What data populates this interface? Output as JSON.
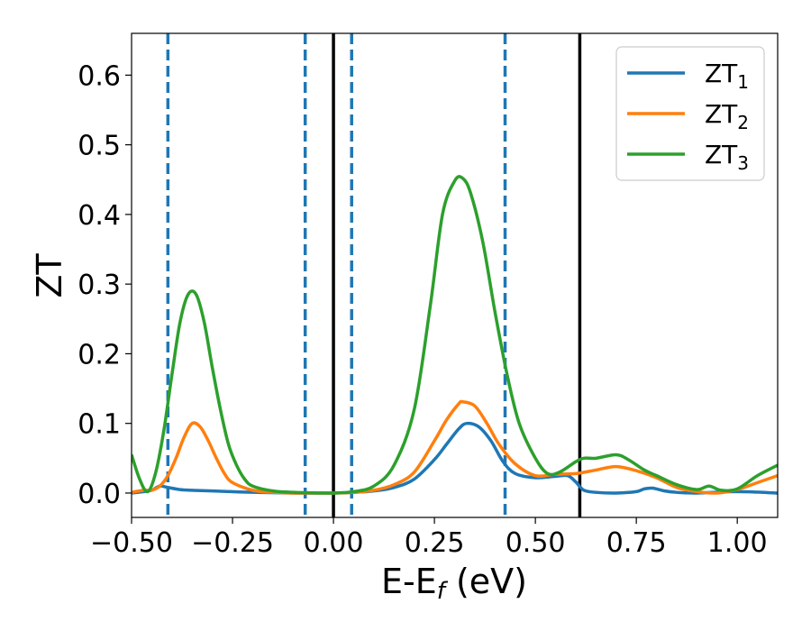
{
  "chart_data": {
    "type": "line",
    "xlabel_main": "E-E",
    "xlabel_sub": "f",
    "xlabel_unit": " (eV)",
    "ylabel": "ZT",
    "xlim": [
      -0.5,
      1.1
    ],
    "ylim": [
      -0.035,
      0.66
    ],
    "xticks": [
      -0.5,
      -0.25,
      0.0,
      0.25,
      0.5,
      0.75,
      1.0
    ],
    "xtick_labels": [
      "−0.50",
      "−0.25",
      "0.00",
      "0.25",
      "0.50",
      "0.75",
      "1.00"
    ],
    "yticks": [
      0.0,
      0.1,
      0.2,
      0.3,
      0.4,
      0.5,
      0.6
    ],
    "ytick_labels": [
      "0.0",
      "0.1",
      "0.2",
      "0.3",
      "0.4",
      "0.5",
      "0.6"
    ],
    "grid": false,
    "legend_position": "top-right",
    "vlines_solid": [
      0.0,
      0.61
    ],
    "vlines_dashed": [
      -0.41,
      -0.07,
      0.045,
      0.425
    ],
    "vline_solid_color": "#000000",
    "vline_dashed_color": "#1f77b4",
    "series": [
      {
        "name_main": "ZT",
        "name_sub": "1",
        "color": "#1f77b4",
        "x": [
          -0.5,
          -0.47,
          -0.45,
          -0.43,
          -0.41,
          -0.38,
          -0.35,
          -0.3,
          -0.2,
          -0.1,
          0.0,
          0.05,
          0.1,
          0.15,
          0.2,
          0.25,
          0.28,
          0.31,
          0.33,
          0.36,
          0.39,
          0.42,
          0.45,
          0.5,
          0.55,
          0.58,
          0.6,
          0.62,
          0.65,
          0.7,
          0.75,
          0.77,
          0.79,
          0.82,
          0.85,
          0.9,
          1.0,
          1.1
        ],
        "y": [
          0.0,
          0.002,
          0.004,
          0.01,
          0.008,
          0.005,
          0.004,
          0.003,
          0.001,
          0.0,
          0.0,
          0.001,
          0.003,
          0.008,
          0.02,
          0.048,
          0.07,
          0.092,
          0.1,
          0.095,
          0.075,
          0.045,
          0.028,
          0.022,
          0.024,
          0.025,
          0.016,
          0.004,
          0.001,
          0.0,
          0.002,
          0.006,
          0.007,
          0.003,
          0.001,
          0.0,
          0.002,
          0.0
        ]
      },
      {
        "name_main": "ZT",
        "name_sub": "2",
        "color": "#ff7f0e",
        "x": [
          -0.5,
          -0.47,
          -0.45,
          -0.43,
          -0.41,
          -0.39,
          -0.37,
          -0.35,
          -0.33,
          -0.31,
          -0.29,
          -0.27,
          -0.25,
          -0.2,
          -0.15,
          -0.1,
          0.0,
          0.05,
          0.1,
          0.15,
          0.2,
          0.25,
          0.28,
          0.31,
          0.32,
          0.35,
          0.38,
          0.41,
          0.45,
          0.5,
          0.55,
          0.6,
          0.65,
          0.7,
          0.75,
          0.8,
          0.85,
          0.9,
          0.95,
          1.0,
          1.05,
          1.1
        ],
        "y": [
          0.001,
          0.004,
          0.004,
          0.01,
          0.025,
          0.05,
          0.08,
          0.1,
          0.095,
          0.075,
          0.05,
          0.028,
          0.015,
          0.004,
          0.001,
          0.0,
          0.0,
          0.001,
          0.004,
          0.012,
          0.03,
          0.075,
          0.105,
          0.128,
          0.131,
          0.125,
          0.1,
          0.07,
          0.042,
          0.025,
          0.027,
          0.028,
          0.033,
          0.038,
          0.032,
          0.022,
          0.008,
          0.002,
          0.0,
          0.005,
          0.015,
          0.025
        ]
      },
      {
        "name_main": "ZT",
        "name_sub": "3",
        "color": "#2ca02c",
        "x": [
          -0.5,
          -0.48,
          -0.46,
          -0.44,
          -0.42,
          -0.4,
          -0.38,
          -0.36,
          -0.34,
          -0.32,
          -0.3,
          -0.28,
          -0.26,
          -0.24,
          -0.22,
          -0.2,
          -0.15,
          -0.1,
          0.0,
          0.05,
          0.1,
          0.15,
          0.2,
          0.24,
          0.27,
          0.3,
          0.32,
          0.34,
          0.37,
          0.4,
          0.43,
          0.46,
          0.5,
          0.53,
          0.56,
          0.6,
          0.62,
          0.65,
          0.7,
          0.73,
          0.77,
          0.8,
          0.85,
          0.9,
          0.93,
          0.96,
          1.0,
          1.05,
          1.1
        ],
        "y": [
          0.055,
          0.02,
          0.002,
          0.03,
          0.09,
          0.17,
          0.245,
          0.285,
          0.285,
          0.245,
          0.18,
          0.12,
          0.07,
          0.04,
          0.02,
          0.01,
          0.003,
          0.001,
          0.0,
          0.002,
          0.01,
          0.04,
          0.12,
          0.27,
          0.4,
          0.448,
          0.452,
          0.43,
          0.36,
          0.26,
          0.17,
          0.1,
          0.05,
          0.028,
          0.03,
          0.045,
          0.05,
          0.05,
          0.055,
          0.048,
          0.033,
          0.025,
          0.012,
          0.005,
          0.01,
          0.004,
          0.006,
          0.025,
          0.04
        ]
      }
    ]
  }
}
